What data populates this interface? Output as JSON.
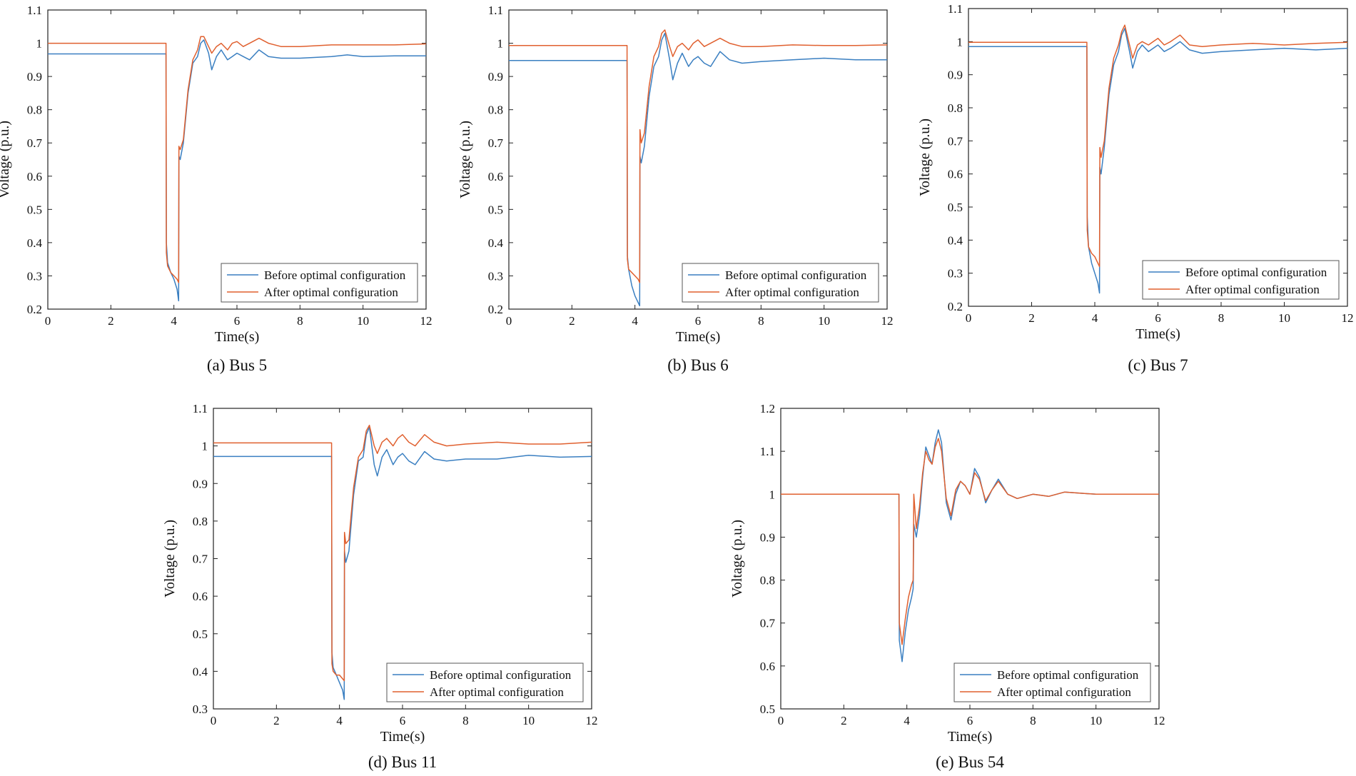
{
  "colors": {
    "before": "#3a7fc1",
    "after": "#e0602f",
    "axis": "#222222",
    "legend_border": "#555555"
  },
  "chart_data": [
    {
      "id": "a",
      "type": "line",
      "caption": "(a)  Bus 5",
      "xlabel": "Time(s)",
      "ylabel": "Voltage (p.u.)",
      "xlim": [
        0,
        12
      ],
      "ylim": [
        0.2,
        1.1
      ],
      "xticks": [
        0,
        2,
        4,
        6,
        8,
        10,
        12
      ],
      "xtick_labels": [
        "0",
        "2",
        "4",
        "6",
        "8",
        "10",
        "12"
      ],
      "yticks": [
        0.2,
        0.3,
        0.4,
        0.5,
        0.6,
        0.7,
        0.8,
        0.9,
        1,
        1.1
      ],
      "ytick_labels": [
        "0.2",
        "0.3",
        "0.4",
        "0.5",
        "0.6",
        "0.7",
        "0.8",
        "0.9",
        "1",
        "1.1"
      ],
      "legend": "bottom-right",
      "grid": false,
      "series": [
        {
          "name": "Before optimal configuration",
          "color": "#3a7fc1",
          "x": [
            0,
            3.75,
            3.76,
            3.8,
            3.9,
            4.0,
            4.1,
            4.15,
            4.16,
            4.2,
            4.3,
            4.45,
            4.6,
            4.75,
            4.85,
            4.95,
            5.1,
            5.2,
            5.35,
            5.5,
            5.7,
            5.85,
            6.0,
            6.2,
            6.4,
            6.7,
            7.0,
            7.4,
            8.0,
            9.0,
            9.5,
            10.0,
            11.0,
            12.0
          ],
          "y": [
            0.968,
            0.968,
            0.4,
            0.34,
            0.31,
            0.29,
            0.26,
            0.225,
            0.66,
            0.65,
            0.7,
            0.85,
            0.94,
            0.96,
            1.0,
            1.01,
            0.97,
            0.92,
            0.96,
            0.98,
            0.95,
            0.96,
            0.97,
            0.96,
            0.95,
            0.98,
            0.96,
            0.955,
            0.955,
            0.96,
            0.965,
            0.96,
            0.962,
            0.962
          ]
        },
        {
          "name": "After optimal configuration",
          "color": "#e0602f",
          "x": [
            0,
            3.75,
            3.76,
            3.8,
            3.9,
            4.0,
            4.1,
            4.15,
            4.16,
            4.2,
            4.3,
            4.45,
            4.6,
            4.75,
            4.85,
            4.95,
            5.1,
            5.2,
            5.35,
            5.5,
            5.7,
            5.85,
            6.0,
            6.2,
            6.4,
            6.7,
            7.0,
            7.4,
            8.0,
            9.0,
            10.0,
            11.0,
            12.0
          ],
          "y": [
            1.0,
            1.0,
            0.37,
            0.33,
            0.31,
            0.3,
            0.29,
            0.28,
            0.69,
            0.68,
            0.71,
            0.86,
            0.95,
            0.98,
            1.02,
            1.02,
            0.99,
            0.97,
            0.99,
            1.0,
            0.98,
            1.0,
            1.005,
            0.99,
            1.0,
            1.015,
            1.0,
            0.99,
            0.99,
            0.995,
            0.995,
            0.995,
            0.998
          ]
        }
      ]
    },
    {
      "id": "b",
      "type": "line",
      "caption": "(b)  Bus 6",
      "xlabel": "Time(s)",
      "ylabel": "Voltage (p.u.)",
      "xlim": [
        0,
        12
      ],
      "ylim": [
        0.2,
        1.1
      ],
      "xticks": [
        0,
        2,
        4,
        6,
        8,
        10,
        12
      ],
      "xtick_labels": [
        "0",
        "2",
        "4",
        "6",
        "8",
        "10",
        "12"
      ],
      "yticks": [
        0.2,
        0.3,
        0.4,
        0.5,
        0.6,
        0.7,
        0.8,
        0.9,
        1,
        1.1
      ],
      "ytick_labels": [
        "0.2",
        "0.3",
        "0.4",
        "0.5",
        "0.6",
        "0.7",
        "0.8",
        "0.9",
        "1",
        "1.1"
      ],
      "legend": "bottom-right",
      "grid": false,
      "series": [
        {
          "name": "Before optimal configuration",
          "color": "#3a7fc1",
          "x": [
            0,
            3.75,
            3.76,
            3.8,
            3.9,
            4.0,
            4.1,
            4.15,
            4.16,
            4.2,
            4.3,
            4.45,
            4.6,
            4.75,
            4.85,
            4.95,
            5.1,
            5.2,
            5.35,
            5.5,
            5.7,
            5.85,
            6.0,
            6.2,
            6.4,
            6.7,
            7.0,
            7.4,
            8.0,
            9.0,
            10.0,
            11.0,
            12.0
          ],
          "y": [
            0.948,
            0.948,
            0.36,
            0.32,
            0.27,
            0.24,
            0.22,
            0.21,
            0.66,
            0.64,
            0.69,
            0.84,
            0.93,
            0.96,
            1.01,
            1.03,
            0.95,
            0.89,
            0.94,
            0.97,
            0.93,
            0.95,
            0.96,
            0.94,
            0.93,
            0.975,
            0.95,
            0.94,
            0.945,
            0.95,
            0.955,
            0.95,
            0.95
          ]
        },
        {
          "name": "After optimal configuration",
          "color": "#e0602f",
          "x": [
            0,
            3.75,
            3.76,
            3.8,
            3.9,
            4.0,
            4.1,
            4.15,
            4.16,
            4.2,
            4.3,
            4.45,
            4.6,
            4.75,
            4.85,
            4.95,
            5.1,
            5.2,
            5.35,
            5.5,
            5.7,
            5.85,
            6.0,
            6.2,
            6.4,
            6.7,
            7.0,
            7.4,
            8.0,
            9.0,
            10.0,
            11.0,
            12.0
          ],
          "y": [
            0.993,
            0.993,
            0.35,
            0.32,
            0.31,
            0.3,
            0.29,
            0.28,
            0.74,
            0.7,
            0.73,
            0.87,
            0.96,
            0.99,
            1.03,
            1.04,
            0.99,
            0.96,
            0.99,
            1.0,
            0.98,
            1.0,
            1.01,
            0.99,
            1.0,
            1.015,
            1.0,
            0.99,
            0.99,
            0.995,
            0.993,
            0.993,
            0.995
          ]
        }
      ]
    },
    {
      "id": "c",
      "type": "line",
      "caption": "(c)  Bus 7",
      "xlabel": "Time(s)",
      "ylabel": "Voltage (p.u.)",
      "xlim": [
        0,
        12
      ],
      "ylim": [
        0.2,
        1.1
      ],
      "xticks": [
        0,
        2,
        4,
        6,
        8,
        10,
        12
      ],
      "xtick_labels": [
        "0",
        "2",
        "4",
        "6",
        "8",
        "10",
        "12"
      ],
      "yticks": [
        0.2,
        0.3,
        0.4,
        0.5,
        0.6,
        0.7,
        0.8,
        0.9,
        1,
        1.1
      ],
      "ytick_labels": [
        "0.2",
        "0.3",
        "0.4",
        "0.5",
        "0.6",
        "0.7",
        "0.8",
        "0.9",
        "1",
        "1.1"
      ],
      "legend": "bottom-right",
      "grid": false,
      "series": [
        {
          "name": "Before optimal configuration",
          "color": "#3a7fc1",
          "x": [
            0,
            3.75,
            3.76,
            3.8,
            3.9,
            4.0,
            4.1,
            4.15,
            4.16,
            4.2,
            4.3,
            4.45,
            4.6,
            4.75,
            4.85,
            4.95,
            5.1,
            5.2,
            5.35,
            5.5,
            5.7,
            5.85,
            6.0,
            6.2,
            6.4,
            6.7,
            7.0,
            7.4,
            8.0,
            9.0,
            10.0,
            11.0,
            12.0
          ],
          "y": [
            0.985,
            0.985,
            0.47,
            0.38,
            0.33,
            0.3,
            0.27,
            0.24,
            0.62,
            0.6,
            0.68,
            0.84,
            0.93,
            0.97,
            1.02,
            1.04,
            0.97,
            0.92,
            0.97,
            0.99,
            0.97,
            0.98,
            0.99,
            0.97,
            0.98,
            1.0,
            0.975,
            0.965,
            0.97,
            0.975,
            0.98,
            0.975,
            0.98
          ]
        },
        {
          "name": "After optimal configuration",
          "color": "#e0602f",
          "x": [
            0,
            3.75,
            3.76,
            3.8,
            3.9,
            4.0,
            4.1,
            4.15,
            4.16,
            4.2,
            4.3,
            4.45,
            4.6,
            4.75,
            4.85,
            4.95,
            5.1,
            5.2,
            5.35,
            5.5,
            5.7,
            5.85,
            6.0,
            6.2,
            6.4,
            6.7,
            7.0,
            7.4,
            8.0,
            9.0,
            10.0,
            11.0,
            12.0
          ],
          "y": [
            0.998,
            0.998,
            0.43,
            0.38,
            0.36,
            0.35,
            0.33,
            0.32,
            0.68,
            0.65,
            0.7,
            0.86,
            0.95,
            0.99,
            1.03,
            1.05,
            0.99,
            0.95,
            0.99,
            1.0,
            0.99,
            1.0,
            1.01,
            0.99,
            1.0,
            1.02,
            0.99,
            0.985,
            0.99,
            0.995,
            0.99,
            0.995,
            0.998
          ]
        }
      ]
    },
    {
      "id": "d",
      "type": "line",
      "caption": "(d)  Bus 11",
      "xlabel": "Time(s)",
      "ylabel": "Voltage (p.u.)",
      "xlim": [
        0,
        12
      ],
      "ylim": [
        0.3,
        1.1
      ],
      "xticks": [
        0,
        2,
        4,
        6,
        8,
        10,
        12
      ],
      "xtick_labels": [
        "0",
        "2",
        "4",
        "6",
        "8",
        "10",
        "12"
      ],
      "yticks": [
        0.3,
        0.4,
        0.5,
        0.6,
        0.7,
        0.8,
        0.9,
        1,
        1.1
      ],
      "ytick_labels": [
        "0.3",
        "0.4",
        "0.5",
        "0.6",
        "0.7",
        "0.8",
        "0.9",
        "1",
        "1.1"
      ],
      "legend": "bottom-right",
      "grid": false,
      "series": [
        {
          "name": "Before optimal configuration",
          "color": "#3a7fc1",
          "x": [
            0,
            3.75,
            3.76,
            3.8,
            3.9,
            4.0,
            4.1,
            4.15,
            4.16,
            4.2,
            4.3,
            4.45,
            4.6,
            4.75,
            4.85,
            4.95,
            5.1,
            5.2,
            5.35,
            5.5,
            5.7,
            5.85,
            6.0,
            6.2,
            6.4,
            6.7,
            7.0,
            7.4,
            8.0,
            9.0,
            10.0,
            11.0,
            12.0
          ],
          "y": [
            0.972,
            0.972,
            0.45,
            0.41,
            0.39,
            0.37,
            0.35,
            0.325,
            0.72,
            0.69,
            0.72,
            0.87,
            0.96,
            0.97,
            1.03,
            1.05,
            0.95,
            0.92,
            0.97,
            0.99,
            0.95,
            0.97,
            0.98,
            0.96,
            0.95,
            0.985,
            0.965,
            0.96,
            0.965,
            0.965,
            0.975,
            0.97,
            0.972
          ]
        },
        {
          "name": "After optimal configuration",
          "color": "#e0602f",
          "x": [
            0,
            3.75,
            3.76,
            3.8,
            3.9,
            4.0,
            4.1,
            4.15,
            4.16,
            4.2,
            4.3,
            4.45,
            4.6,
            4.75,
            4.85,
            4.95,
            5.1,
            5.2,
            5.35,
            5.5,
            5.7,
            5.85,
            6.0,
            6.2,
            6.4,
            6.7,
            7.0,
            7.4,
            8.0,
            9.0,
            10.0,
            11.0,
            12.0
          ],
          "y": [
            1.008,
            1.008,
            0.42,
            0.4,
            0.39,
            0.39,
            0.38,
            0.375,
            0.77,
            0.74,
            0.75,
            0.89,
            0.97,
            0.99,
            1.04,
            1.055,
            1.0,
            0.98,
            1.01,
            1.02,
            1.0,
            1.02,
            1.03,
            1.01,
            1.0,
            1.03,
            1.01,
            1.0,
            1.005,
            1.01,
            1.005,
            1.005,
            1.01
          ]
        }
      ]
    },
    {
      "id": "e",
      "type": "line",
      "caption": "(e)  Bus 54",
      "xlabel": "Time(s)",
      "ylabel": "Voltage (p.u.)",
      "xlim": [
        0,
        12
      ],
      "ylim": [
        0.5,
        1.2
      ],
      "xticks": [
        0,
        2,
        4,
        6,
        8,
        10,
        12
      ],
      "xtick_labels": [
        "0",
        "2",
        "4",
        "6",
        "8",
        "10",
        "12"
      ],
      "yticks": [
        0.5,
        0.6,
        0.7,
        0.8,
        0.9,
        1,
        1.1,
        1.2
      ],
      "ytick_labels": [
        "0.5",
        "0.6",
        "0.7",
        "0.8",
        "0.9",
        "1",
        "1.1",
        "1.2"
      ],
      "legend": "bottom-right",
      "grid": false,
      "series": [
        {
          "name": "Before optimal configuration",
          "color": "#3a7fc1",
          "x": [
            0,
            3.75,
            3.76,
            3.85,
            3.95,
            4.05,
            4.15,
            4.2,
            4.22,
            4.3,
            4.4,
            4.5,
            4.6,
            4.7,
            4.8,
            4.9,
            5.0,
            5.1,
            5.25,
            5.4,
            5.55,
            5.7,
            5.85,
            6.0,
            6.15,
            6.3,
            6.5,
            6.7,
            6.9,
            7.2,
            7.5,
            8.0,
            8.5,
            9.0,
            10.0,
            11.0,
            12.0
          ],
          "y": [
            1.0,
            1.0,
            0.66,
            0.61,
            0.68,
            0.73,
            0.76,
            0.78,
            0.93,
            0.9,
            0.95,
            1.04,
            1.11,
            1.09,
            1.07,
            1.12,
            1.15,
            1.12,
            0.98,
            0.94,
            1.0,
            1.03,
            1.02,
            1.0,
            1.06,
            1.04,
            0.98,
            1.01,
            1.035,
            1.0,
            0.99,
            1.0,
            0.995,
            1.005,
            1.0,
            1.0,
            1.0
          ]
        },
        {
          "name": "After optimal configuration",
          "color": "#e0602f",
          "x": [
            0,
            3.75,
            3.76,
            3.85,
            3.95,
            4.05,
            4.15,
            4.2,
            4.22,
            4.3,
            4.4,
            4.5,
            4.6,
            4.7,
            4.8,
            4.9,
            5.0,
            5.1,
            5.25,
            5.4,
            5.55,
            5.7,
            5.85,
            6.0,
            6.15,
            6.3,
            6.5,
            6.7,
            6.9,
            7.2,
            7.5,
            8.0,
            8.5,
            9.0,
            10.0,
            11.0,
            12.0
          ],
          "y": [
            1.0,
            1.0,
            0.7,
            0.65,
            0.71,
            0.76,
            0.79,
            0.8,
            1.0,
            0.92,
            0.97,
            1.05,
            1.1,
            1.08,
            1.07,
            1.11,
            1.13,
            1.1,
            0.99,
            0.95,
            1.01,
            1.03,
            1.02,
            1.0,
            1.05,
            1.035,
            0.985,
            1.01,
            1.03,
            1.0,
            0.99,
            1.0,
            0.995,
            1.005,
            1.0,
            1.0,
            1.0
          ]
        }
      ]
    }
  ]
}
